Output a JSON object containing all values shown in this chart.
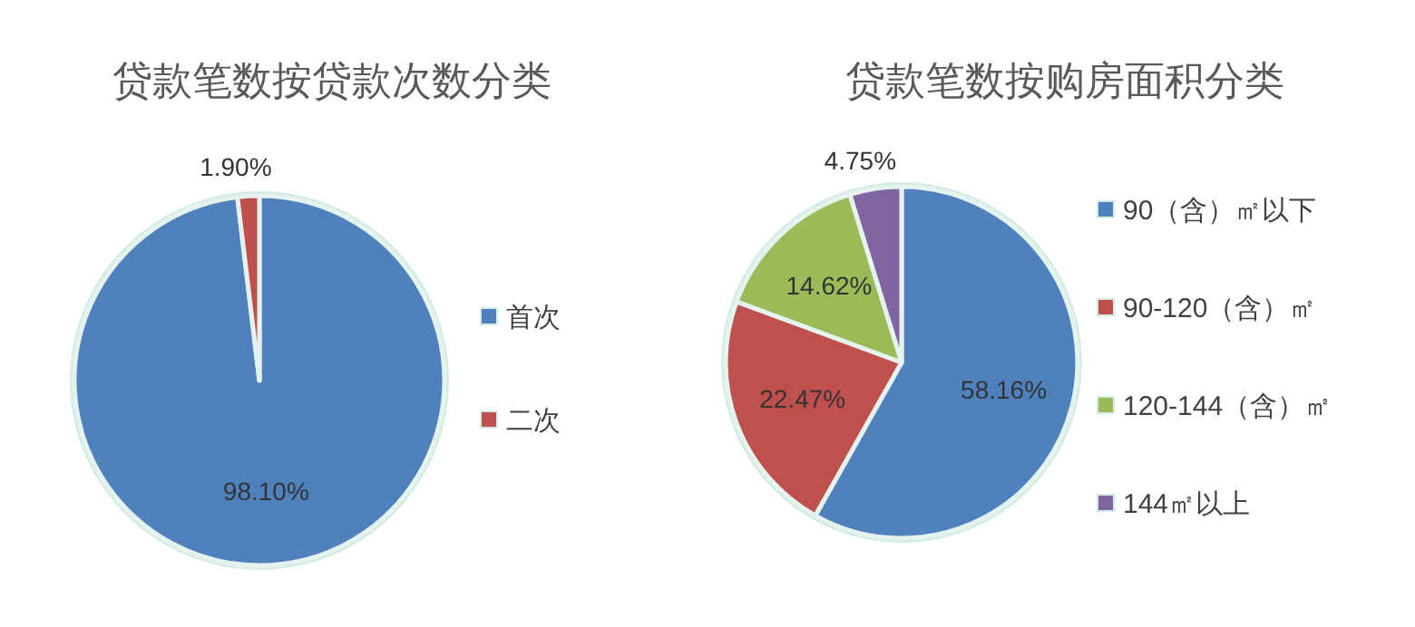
{
  "chart_data": [
    {
      "type": "pie",
      "title": "贷款笔数按贷款次数分类",
      "categories": [
        "首次",
        "二次"
      ],
      "values": [
        98.1,
        1.9
      ],
      "colors": [
        "#4f81bd",
        "#c0504d"
      ],
      "value_labels": [
        "98.10%",
        "1.90%"
      ],
      "legend": "right"
    },
    {
      "type": "pie",
      "title": "贷款笔数按购房面积分类",
      "categories": [
        "90（含）㎡以下",
        "90-120（含）㎡",
        "120-144（含）㎡",
        "144㎡以上"
      ],
      "values": [
        58.16,
        22.47,
        14.62,
        4.75
      ],
      "colors": [
        "#4f81bd",
        "#c0504d",
        "#9bbb59",
        "#8064a2"
      ],
      "value_labels": [
        "58.16%",
        "22.47%",
        "14.62%",
        "4.75%"
      ],
      "legend": "right"
    }
  ]
}
